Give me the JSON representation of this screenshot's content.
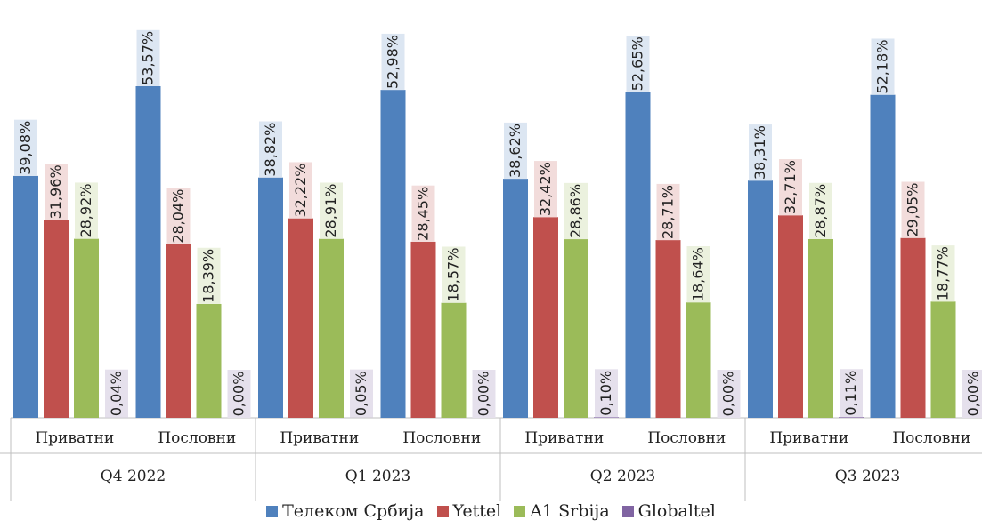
{
  "chart_data": {
    "type": "bar",
    "groups": [
      "Q4 2022",
      "Q1 2023",
      "Q2 2023",
      "Q3 2023"
    ],
    "categories": [
      "Приватни",
      "Пословни"
    ],
    "ylim": [
      0,
      55
    ],
    "series": [
      {
        "name": "Телеком Србија",
        "color": "#4F81BD",
        "label_bg": "#DCE6F2",
        "values": [
          [
            39.08,
            53.57
          ],
          [
            38.82,
            52.98
          ],
          [
            38.62,
            52.65
          ],
          [
            38.31,
            52.18
          ]
        ],
        "labels": [
          [
            "39,08%",
            "53,57%"
          ],
          [
            "38,82%",
            "52,98%"
          ],
          [
            "38,62%",
            "52,65%"
          ],
          [
            "38,31%",
            "52,18%"
          ]
        ]
      },
      {
        "name": "Yettel",
        "color": "#C0504D",
        "label_bg": "#F2DCDB",
        "values": [
          [
            31.96,
            28.04
          ],
          [
            32.22,
            28.45
          ],
          [
            32.42,
            28.71
          ],
          [
            32.71,
            29.05
          ]
        ],
        "labels": [
          [
            "31,96%",
            "28,04%"
          ],
          [
            "32,22%",
            "28,45%"
          ],
          [
            "32,42%",
            "28,71%"
          ],
          [
            "32,71%",
            "29,05%"
          ]
        ]
      },
      {
        "name": "A1 Srbija",
        "color": "#9BBB59",
        "label_bg": "#EBF1DE",
        "values": [
          [
            28.92,
            18.39
          ],
          [
            28.91,
            18.57
          ],
          [
            28.86,
            18.64
          ],
          [
            28.87,
            18.77
          ]
        ],
        "labels": [
          [
            "28,92%",
            "18,39%"
          ],
          [
            "28,91%",
            "18,57%"
          ],
          [
            "28,86%",
            "18,64%"
          ],
          [
            "28,87%",
            "18,77%"
          ]
        ]
      },
      {
        "name": "Globaltel",
        "color": "#8064A2",
        "label_bg": "#E5E0EC",
        "values": [
          [
            0.04,
            0.0
          ],
          [
            0.05,
            0.0
          ],
          [
            0.1,
            0.0
          ],
          [
            0.11,
            0.0
          ]
        ],
        "labels": [
          [
            "0,04%",
            "0,00%"
          ],
          [
            "0,05%",
            "0,00%"
          ],
          [
            "0,10%",
            "0,00%"
          ],
          [
            "0,11%",
            "0,00%"
          ]
        ]
      }
    ],
    "legend": "bottom",
    "grid": false
  }
}
